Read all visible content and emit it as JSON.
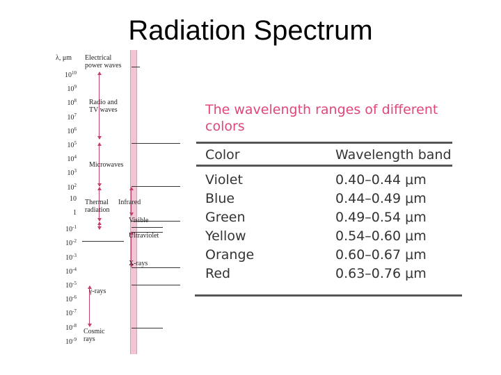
{
  "title": "Radiation Spectrum",
  "spectrum": {
    "axis_label": "λ, μm",
    "ticks": [
      {
        "base": "10",
        "exp": "10"
      },
      {
        "base": "10",
        "exp": "9"
      },
      {
        "base": "10",
        "exp": "8"
      },
      {
        "base": "10",
        "exp": "7"
      },
      {
        "base": "10",
        "exp": "6"
      },
      {
        "base": "10",
        "exp": "5"
      },
      {
        "base": "10",
        "exp": "4"
      },
      {
        "base": "10",
        "exp": "3"
      },
      {
        "base": "10",
        "exp": "2"
      },
      {
        "base": "10",
        "exp": ""
      },
      {
        "base": "1",
        "exp": ""
      },
      {
        "base": "10",
        "exp": "-1"
      },
      {
        "base": "10",
        "exp": "-2"
      },
      {
        "base": "10",
        "exp": "-3"
      },
      {
        "base": "10",
        "exp": "-4"
      },
      {
        "base": "10",
        "exp": "-5"
      },
      {
        "base": "10",
        "exp": "-6"
      },
      {
        "base": "10",
        "exp": "-7"
      },
      {
        "base": "10",
        "exp": "-8"
      },
      {
        "base": "10",
        "exp": "-9"
      }
    ],
    "bands": {
      "electrical": "Electrical power waves",
      "radio": "Radio and TV waves",
      "microwaves": "Microwaves",
      "thermal": "Thermal radiation",
      "infrared": "Infrared",
      "visible": "Visible",
      "ultraviolet": "Ultraviolet",
      "xrays": "X-rays",
      "gamma": "γ-rays",
      "cosmic": "Cosmic rays"
    }
  },
  "table": {
    "title": "The wavelength ranges of different colors",
    "headers": [
      "Color",
      "Wavelength band"
    ],
    "rows": [
      {
        "color": "Violet",
        "band": "0.40–0.44 μm"
      },
      {
        "color": "Blue",
        "band": "0.44–0.49 μm"
      },
      {
        "color": "Green",
        "band": "0.49–0.54 μm"
      },
      {
        "color": "Yellow",
        "band": "0.54–0.60 μm"
      },
      {
        "color": "Orange",
        "band": "0.60–0.67 μm"
      },
      {
        "color": "Red",
        "band": "0.63–0.76 μm"
      }
    ],
    "colors": {
      "title": "#e0467c",
      "rule": "#555555"
    }
  }
}
